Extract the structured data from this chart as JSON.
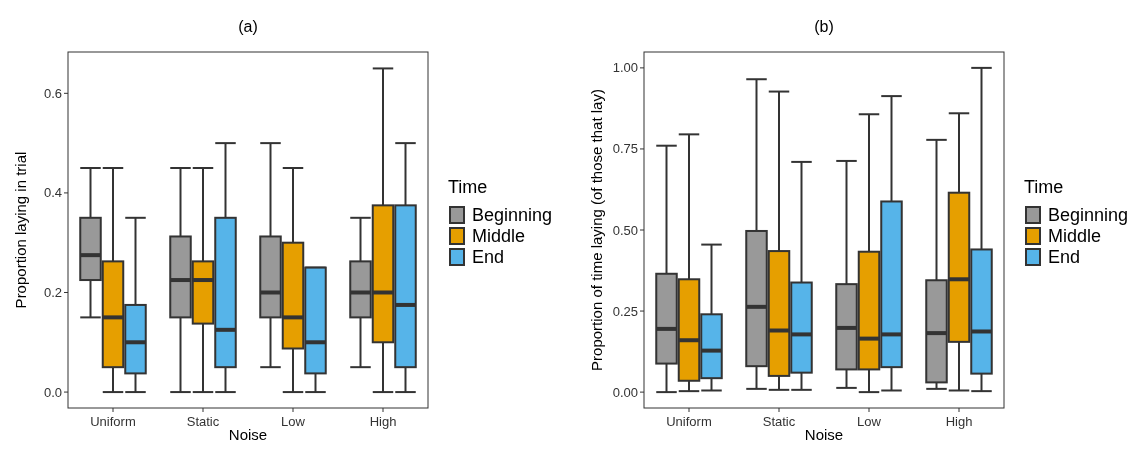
{
  "chart_data": [
    {
      "type": "box",
      "title": "(a)",
      "xlabel": "Noise",
      "ylabel": "Proportion laying in trial",
      "legend_title": "Time",
      "legend": "right",
      "grid": false,
      "categories": [
        "Uniform",
        "Static",
        "Low",
        "High"
      ],
      "ylim": [
        -0.032,
        0.683
      ],
      "yticks": [
        {
          "value": 0,
          "label": "0.0"
        },
        {
          "value": 0.2,
          "label": "0.2"
        },
        {
          "value": 0.4,
          "label": "0.4"
        },
        {
          "value": 0.6,
          "label": "0.6"
        }
      ],
      "series": [
        {
          "name": "Beginning",
          "color": "#999999",
          "boxes": [
            {
              "low": 0.15,
              "q1": 0.225,
              "median": 0.275,
              "q3": 0.35,
              "high": 0.45
            },
            {
              "low": 0,
              "q1": 0.15,
              "median": 0.225,
              "q3": 0.3125,
              "high": 0.45
            },
            {
              "low": 0.05,
              "q1": 0.15,
              "median": 0.2,
              "q3": 0.3125,
              "high": 0.5
            },
            {
              "low": 0.05,
              "q1": 0.15,
              "median": 0.2,
              "q3": 0.2625,
              "high": 0.35
            }
          ]
        },
        {
          "name": "Middle",
          "color": "#e69f00",
          "boxes": [
            {
              "low": 0,
              "q1": 0.05,
              "median": 0.15,
              "q3": 0.2625,
              "high": 0.45
            },
            {
              "low": 0,
              "q1": 0.1375,
              "median": 0.225,
              "q3": 0.2625,
              "high": 0.45
            },
            {
              "low": 0,
              "q1": 0.0875,
              "median": 0.15,
              "q3": 0.3,
              "high": 0.45
            },
            {
              "low": 0,
              "q1": 0.1,
              "median": 0.2,
              "q3": 0.375,
              "high": 0.65
            }
          ]
        },
        {
          "name": "End",
          "color": "#56b4e9",
          "boxes": [
            {
              "low": 0,
              "q1": 0.0375,
              "median": 0.1,
              "q3": 0.175,
              "high": 0.35
            },
            {
              "low": 0,
              "q1": 0.05,
              "median": 0.125,
              "q3": 0.35,
              "high": 0.5
            },
            {
              "low": 0,
              "q1": 0.0375,
              "median": 0.1,
              "q3": 0.25,
              "high": 0.25
            },
            {
              "low": 0,
              "q1": 0.05,
              "median": 0.175,
              "q3": 0.375,
              "high": 0.5
            }
          ]
        }
      ]
    },
    {
      "type": "box",
      "title": "(b)",
      "xlabel": "Noise",
      "ylabel": "Proportion of time laying (of those that lay)",
      "legend_title": "Time",
      "legend": "right",
      "grid": false,
      "categories": [
        "Uniform",
        "Static",
        "Low",
        "High"
      ],
      "ylim": [
        -0.049,
        1.049
      ],
      "yticks": [
        {
          "value": 0,
          "label": "0.00"
        },
        {
          "value": 0.25,
          "label": "0.25"
        },
        {
          "value": 0.5,
          "label": "0.50"
        },
        {
          "value": 0.75,
          "label": "0.75"
        },
        {
          "value": 1,
          "label": "1.00"
        }
      ],
      "series": [
        {
          "name": "Beginning",
          "color": "#999999",
          "boxes": [
            {
              "low": 0,
              "q1": 0.088,
              "median": 0.195,
              "q3": 0.365,
              "high": 0.76
            },
            {
              "low": 0.01,
              "q1": 0.08,
              "median": 0.263,
              "q3": 0.497,
              "high": 0.965
            },
            {
              "low": 0.013,
              "q1": 0.07,
              "median": 0.198,
              "q3": 0.333,
              "high": 0.713
            },
            {
              "low": 0.01,
              "q1": 0.03,
              "median": 0.182,
              "q3": 0.345,
              "high": 0.778
            }
          ]
        },
        {
          "name": "Middle",
          "color": "#e69f00",
          "boxes": [
            {
              "low": 0.003,
              "q1": 0.035,
              "median": 0.16,
              "q3": 0.348,
              "high": 0.795
            },
            {
              "low": 0.007,
              "q1": 0.05,
              "median": 0.19,
              "q3": 0.435,
              "high": 0.927
            },
            {
              "low": 0,
              "q1": 0.07,
              "median": 0.165,
              "q3": 0.433,
              "high": 0.857
            },
            {
              "low": 0.005,
              "q1": 0.155,
              "median": 0.348,
              "q3": 0.615,
              "high": 0.86
            }
          ]
        },
        {
          "name": "End",
          "color": "#56b4e9",
          "boxes": [
            {
              "low": 0.005,
              "q1": 0.043,
              "median": 0.128,
              "q3": 0.24,
              "high": 0.455
            },
            {
              "low": 0.007,
              "q1": 0.06,
              "median": 0.178,
              "q3": 0.338,
              "high": 0.71
            },
            {
              "low": 0.005,
              "q1": 0.077,
              "median": 0.178,
              "q3": 0.588,
              "high": 0.913
            },
            {
              "low": 0.003,
              "q1": 0.057,
              "median": 0.187,
              "q3": 0.44,
              "high": 1.0
            }
          ]
        }
      ]
    }
  ]
}
